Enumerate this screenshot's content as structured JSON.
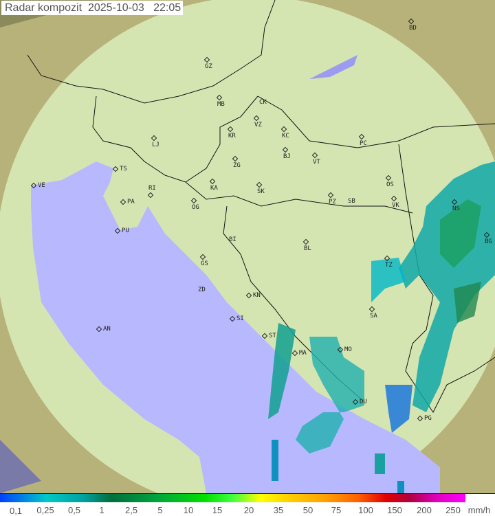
{
  "title": "Radar kompozit  2025-10-03   22:05",
  "legend": {
    "unit": "mm/h",
    "ticks": [
      "0,1",
      "0,25",
      "0,5",
      "1",
      "2,5",
      "5",
      "10",
      "15",
      "20",
      "35",
      "50",
      "75",
      "100",
      "150",
      "200",
      "250"
    ]
  },
  "colors": {
    "sea": "#b8b8ff",
    "coverage": "#d8ecb8",
    "outside": "#8a8a5a"
  },
  "cities": [
    "GZ",
    "BD",
    "MB",
    "CK",
    "VZ",
    "KR",
    "KC",
    "PC",
    "LJ",
    "ZG",
    "BJ",
    "VT",
    "TS",
    "VE",
    "RI",
    "KA",
    "SK",
    "OS",
    "PA",
    "OG",
    "PZ",
    "SB",
    "VK",
    "NS",
    "PU",
    "BG",
    "BI",
    "BL",
    "GS",
    "TZ",
    "ZD",
    "KN",
    "SA",
    "SI",
    "AN",
    "ST",
    "MO",
    "MA",
    "DU",
    "PG"
  ]
}
